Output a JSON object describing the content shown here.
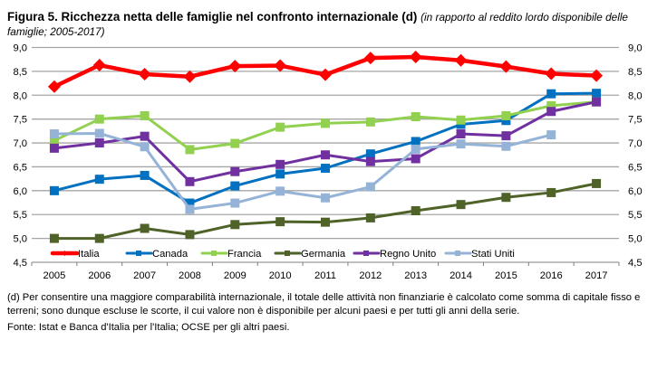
{
  "figure": {
    "title_bold": "Figura 5. Ricchezza netta delle famiglie nel confronto internazionale (d)",
    "title_italic": "(in rapporto al reddito lordo disponibile delle famiglie; 2005-2017)",
    "note": "(d) Per consentire una maggiore comparabilità internazionale, il totale delle attività non finanziarie è calcolato come somma di capitale fisso e terreni; sono dunque escluse le scorte, il cui valore non è disponibile per alcuni paesi e per tutti gli anni della serie.",
    "source": "Fonte: Istat e Banca d'Italia per l'Italia; OCSE per gli altri paesi."
  },
  "chart_data": {
    "type": "line",
    "title": "Ricchezza netta delle famiglie nel confronto internazionale",
    "xlabel": "",
    "ylabel": "",
    "ylim": [
      4.5,
      9.0
    ],
    "yticks": [
      "4,5",
      "5,0",
      "5,5",
      "6,0",
      "6,5",
      "7,0",
      "7,5",
      "8,0",
      "8,5",
      "9,0"
    ],
    "ytick_values": [
      4.5,
      5.0,
      5.5,
      6.0,
      6.5,
      7.0,
      7.5,
      8.0,
      8.5,
      9.0
    ],
    "y_axis_both_sides": true,
    "grid": true,
    "legend_position": "bottom-inside",
    "categories": [
      "2005",
      "2006",
      "2007",
      "2008",
      "2009",
      "2010",
      "2011",
      "2012",
      "2013",
      "2014",
      "2015",
      "2016",
      "2017"
    ],
    "series": [
      {
        "name": "Italia",
        "color": "#ff0000",
        "marker": "diamond",
        "values": [
          8.18,
          8.63,
          8.44,
          8.39,
          8.61,
          8.62,
          8.43,
          8.78,
          8.8,
          8.73,
          8.6,
          8.45,
          8.41
        ]
      },
      {
        "name": "Canada",
        "color": "#0070c0",
        "marker": "square",
        "values": [
          6.0,
          6.24,
          6.32,
          5.74,
          6.1,
          6.35,
          6.47,
          6.77,
          7.03,
          7.39,
          7.47,
          8.03,
          8.04
        ]
      },
      {
        "name": "Francia",
        "color": "#92d050",
        "marker": "square",
        "values": [
          7.05,
          7.5,
          7.57,
          6.86,
          6.99,
          7.33,
          7.41,
          7.44,
          7.55,
          7.48,
          7.57,
          7.78,
          7.86
        ]
      },
      {
        "name": "Germania",
        "color": "#4f6228",
        "marker": "square",
        "values": [
          5.0,
          5.0,
          5.21,
          5.08,
          5.29,
          5.35,
          5.34,
          5.43,
          5.58,
          5.71,
          5.86,
          5.96,
          6.15
        ]
      },
      {
        "name": "Regno Unito",
        "color": "#7030a0",
        "marker": "square",
        "values": [
          6.89,
          7.0,
          7.14,
          6.19,
          6.4,
          6.55,
          6.75,
          6.61,
          6.67,
          7.19,
          7.15,
          7.66,
          7.86
        ]
      },
      {
        "name": "Stati Uniti",
        "color": "#95b3d7",
        "marker": "square",
        "values": [
          7.19,
          7.2,
          6.92,
          5.61,
          5.74,
          5.99,
          5.85,
          6.08,
          6.87,
          6.98,
          6.93,
          7.17,
          null
        ]
      }
    ]
  }
}
